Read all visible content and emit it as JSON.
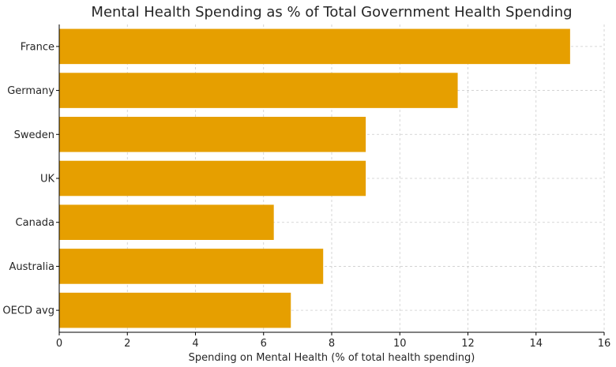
{
  "chart_data": {
    "type": "bar",
    "orientation": "horizontal",
    "title": "Mental Health Spending as % of Total Government Health Spending",
    "xlabel": "Spending on Mental Health (% of total health spending)",
    "ylabel": "",
    "categories": [
      "France",
      "Germany",
      "Sweden",
      "UK",
      "Canada",
      "Australia",
      "OECD avg"
    ],
    "values": [
      15.0,
      11.7,
      9.0,
      9.0,
      6.3,
      7.75,
      6.8
    ],
    "xlim": [
      0,
      16
    ],
    "xticks": [
      0,
      2,
      4,
      6,
      8,
      10,
      12,
      14,
      16
    ],
    "grid": true,
    "bar_color": "#E69F00"
  }
}
